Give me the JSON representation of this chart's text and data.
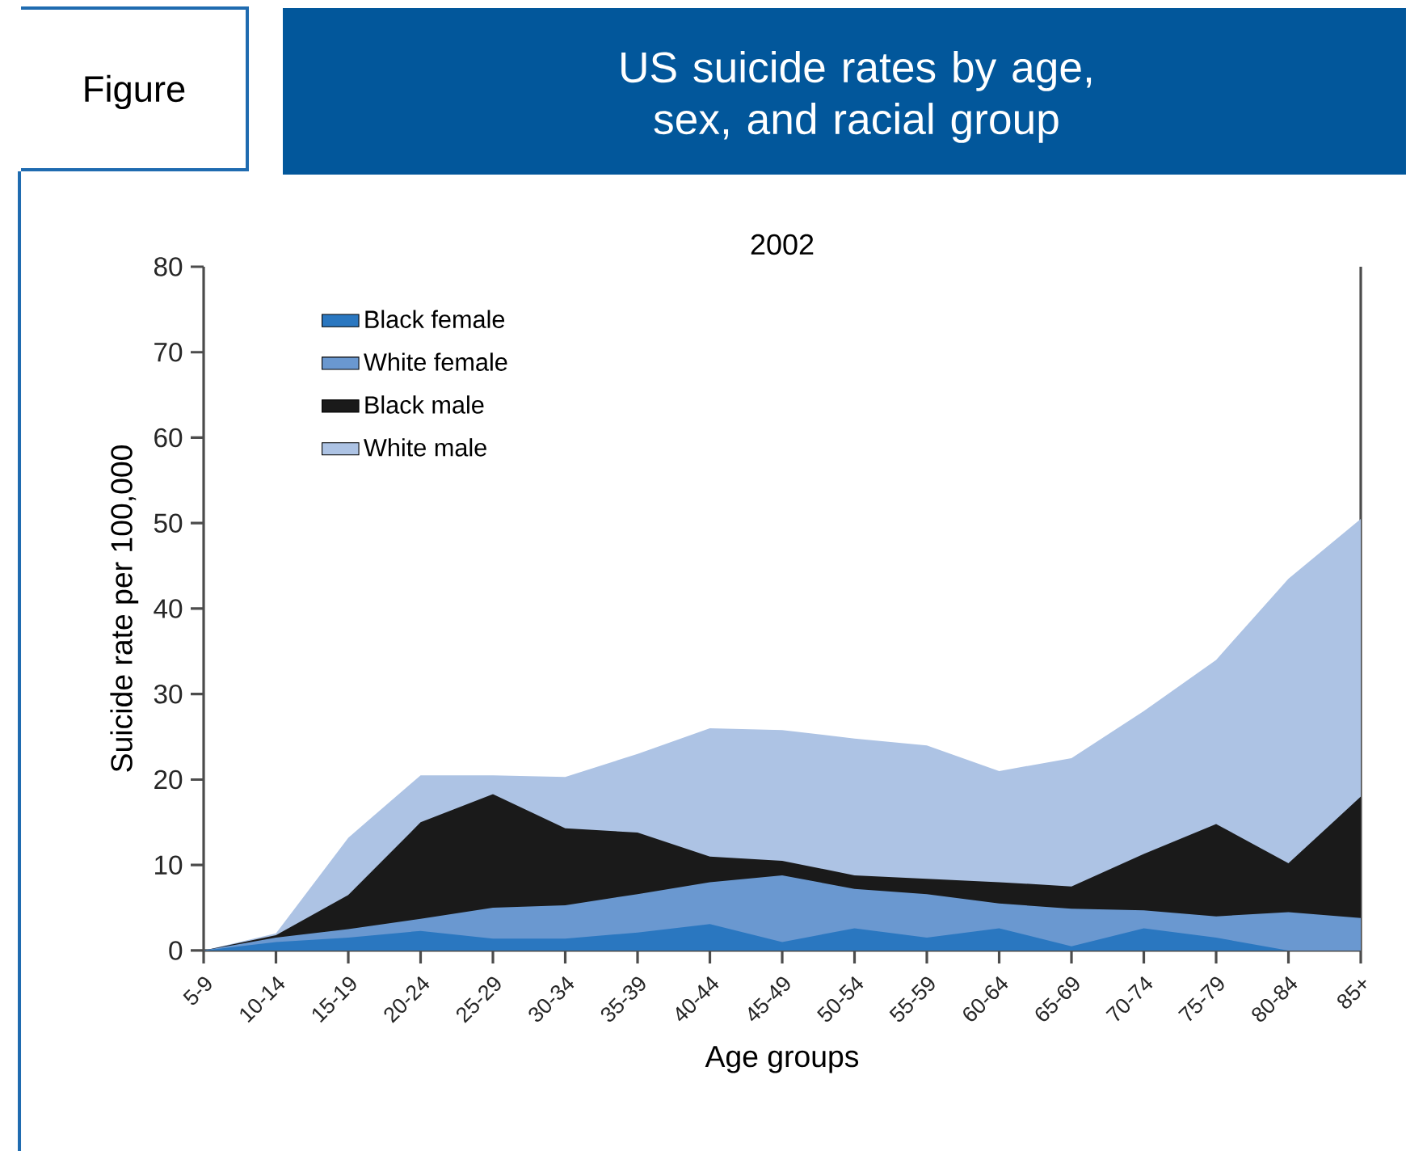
{
  "chart_data": {
    "type": "area",
    "title": "US suicide rates by age, sex, and racial group",
    "subtitle": "2002",
    "annotations": [
      "Figure"
    ],
    "xlabel": "Age groups",
    "ylabel": "Suicide rate per 100,000",
    "categories": [
      "5-9",
      "10-14",
      "15-19",
      "20-24",
      "25-29",
      "30-34",
      "35-39",
      "40-44",
      "45-49",
      "50-54",
      "55-59",
      "60-64",
      "65-69",
      "70-74",
      "75-79",
      "80-84",
      "85+"
    ],
    "series": [
      {
        "name": "Black female",
        "color": "#2a77c0",
        "values": [
          0,
          1,
          1.5,
          2.3,
          1.4,
          1.4,
          2.1,
          3.1,
          1,
          2.6,
          1.5,
          2.6,
          0.5,
          2.6,
          1.5,
          0,
          0
        ]
      },
      {
        "name": "White female",
        "color": "#6a98d0",
        "values": [
          0,
          1.5,
          2.5,
          3.7,
          5,
          5.3,
          6.6,
          8,
          8.8,
          7.2,
          6.6,
          5.5,
          4.9,
          4.7,
          4,
          4.5,
          3.8
        ]
      },
      {
        "name": "Black male",
        "color": "#1a1a1a",
        "values": [
          0,
          1.8,
          6.5,
          15,
          18.3,
          14.3,
          13.8,
          11,
          10.5,
          8.8,
          8.4,
          8,
          7.5,
          11.3,
          14.8,
          10.2,
          18
        ]
      },
      {
        "name": "White male",
        "color": "#adc3e4",
        "values": [
          0,
          2,
          13.2,
          20.5,
          20.5,
          20.3,
          23,
          26,
          25.8,
          24.8,
          24,
          21,
          22.5,
          28,
          34,
          43.5,
          50.5
        ]
      }
    ],
    "ylim": [
      0,
      80
    ],
    "yticks": [
      0,
      10,
      20,
      30,
      40,
      50,
      60,
      70,
      80
    ],
    "legend": "top left"
  }
}
